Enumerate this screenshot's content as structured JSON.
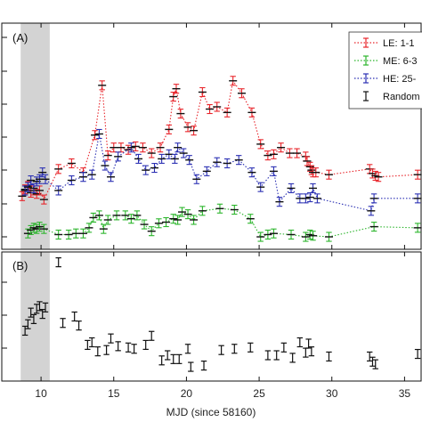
{
  "chart_data": [
    {
      "panel": "(A)",
      "type": "scatter",
      "xlabel": "",
      "ylabel": "",
      "xlim": [
        7.3,
        36.2
      ],
      "ylim": [
        0,
        1
      ],
      "shaded_x": [
        8.6,
        10.6
      ],
      "legend": {
        "placement": "top-right",
        "entries": [
          "LE: 1-1",
          "ME: 6-3",
          "HE: 25-",
          "Random"
        ]
      },
      "series": [
        {
          "name": "LE: 1-1",
          "color": "#e8242a",
          "x": [
            8.7,
            8.9,
            9.1,
            9.3,
            9.5,
            9.7,
            9.9,
            10.2,
            11.2,
            12.1,
            12.9,
            13.7,
            14.2,
            14.6,
            15.0,
            15.5,
            16.0,
            16.5,
            17.0,
            17.6,
            18.2,
            18.8,
            19.1,
            19.3,
            19.6,
            20.1,
            20.5,
            21.1,
            21.6,
            22.1,
            22.8,
            23.2,
            23.8,
            24.5,
            25.1,
            25.6,
            26.0,
            26.5,
            27.1,
            27.6,
            28.2,
            28.3,
            28.5,
            28.6,
            28.7,
            28.9,
            29.8,
            32.6,
            32.8,
            33.0,
            33.2,
            35.9
          ],
          "y": [
            0.765,
            0.735,
            0.72,
            0.75,
            0.74,
            0.755,
            0.74,
            0.78,
            0.645,
            0.62,
            0.66,
            0.495,
            0.275,
            0.585,
            0.55,
            0.55,
            0.56,
            0.545,
            0.55,
            0.575,
            0.55,
            0.47,
            0.325,
            0.29,
            0.4,
            0.46,
            0.475,
            0.305,
            0.38,
            0.37,
            0.395,
            0.255,
            0.31,
            0.395,
            0.535,
            0.585,
            0.58,
            0.55,
            0.575,
            0.575,
            0.59,
            0.61,
            0.635,
            0.65,
            0.66,
            0.66,
            0.67,
            0.645,
            0.665,
            0.675,
            0.68,
            0.67
          ]
        },
        {
          "name": "ME: 6-3",
          "color": "#2bb52b",
          "x": [
            9.1,
            9.3,
            9.5,
            9.7,
            9.9,
            10.2,
            11.2,
            11.9,
            12.4,
            12.9,
            13.3,
            13.6,
            14.0,
            14.3,
            14.6,
            15.2,
            15.8,
            16.2,
            16.6,
            17.1,
            17.6,
            18.1,
            18.6,
            19.1,
            19.4,
            19.7,
            20.1,
            20.5,
            21.1,
            22.3,
            23.3,
            24.4,
            25.1,
            25.6,
            26.0,
            27.2,
            28.2,
            28.5,
            28.7,
            29.8,
            32.9,
            35.9
          ],
          "y": [
            0.93,
            0.915,
            0.905,
            0.91,
            0.9,
            0.91,
            0.935,
            0.935,
            0.93,
            0.93,
            0.905,
            0.86,
            0.85,
            0.91,
            0.87,
            0.85,
            0.85,
            0.865,
            0.85,
            0.89,
            0.92,
            0.885,
            0.88,
            0.865,
            0.87,
            0.835,
            0.845,
            0.87,
            0.83,
            0.82,
            0.825,
            0.865,
            0.945,
            0.935,
            0.93,
            0.935,
            0.945,
            0.935,
            0.94,
            0.945,
            0.9,
            0.905
          ]
        },
        {
          "name": "HE: 25-",
          "color": "#2a2fb3",
          "x": [
            8.9,
            9.1,
            9.3,
            9.5,
            9.7,
            9.9,
            10.1,
            10.3,
            11.2,
            12.1,
            12.9,
            13.5,
            14.0,
            14.4,
            14.8,
            15.3,
            16.2,
            16.7,
            17.2,
            17.8,
            18.3,
            18.8,
            19.2,
            19.4,
            19.8,
            20.2,
            20.7,
            21.4,
            22.1,
            22.8,
            23.6,
            24.5,
            25.1,
            26.0,
            26.4,
            27.2,
            27.8,
            28.2,
            28.5,
            28.7,
            29.0,
            32.7,
            32.9,
            35.9
          ],
          "y": [
            0.74,
            0.725,
            0.695,
            0.73,
            0.7,
            0.69,
            0.66,
            0.69,
            0.74,
            0.695,
            0.68,
            0.67,
            0.49,
            0.63,
            0.68,
            0.59,
            0.55,
            0.6,
            0.65,
            0.64,
            0.6,
            0.58,
            0.6,
            0.55,
            0.575,
            0.605,
            0.69,
            0.655,
            0.615,
            0.62,
            0.605,
            0.66,
            0.725,
            0.655,
            0.79,
            0.73,
            0.775,
            0.775,
            0.77,
            0.73,
            0.775,
            0.83,
            0.775,
            0.775
          ]
        }
      ]
    },
    {
      "panel": "(B)",
      "type": "scatter",
      "xlabel": "MJD (since 58160)",
      "ylabel": "",
      "xlim": [
        7.3,
        36.2
      ],
      "ylim": [
        0,
        1
      ],
      "shaded_x": [
        8.6,
        10.6
      ],
      "xticks": [
        "10",
        "15",
        "20",
        "25",
        "30",
        "35"
      ],
      "xtick_values": [
        10,
        15,
        20,
        25,
        30,
        35
      ],
      "series": [
        {
          "name": "Random",
          "color": "#111111",
          "x": [
            8.9,
            9.1,
            9.3,
            9.5,
            9.7,
            9.9,
            10.1,
            10.3,
            11.2,
            11.5,
            12.3,
            12.6,
            13.2,
            13.5,
            13.9,
            14.5,
            14.8,
            15.3,
            16.0,
            16.4,
            17.2,
            17.6,
            18.3,
            18.7,
            19.1,
            19.5,
            20.1,
            20.3,
            21.2,
            22.4,
            23.3,
            24.4,
            25.6,
            26.2,
            26.7,
            27.3,
            27.8,
            28.2,
            28.4,
            28.6,
            29.8,
            32.6,
            32.8,
            33.0,
            35.9
          ],
          "y": [
            0.61,
            0.56,
            0.47,
            0.52,
            0.44,
            0.42,
            0.48,
            0.43,
            0.08,
            0.55,
            0.5,
            0.57,
            0.72,
            0.7,
            0.77,
            0.76,
            0.67,
            0.73,
            0.74,
            0.75,
            0.72,
            0.65,
            0.84,
            0.8,
            0.83,
            0.83,
            0.75,
            0.89,
            0.88,
            0.76,
            0.75,
            0.74,
            0.8,
            0.8,
            0.74,
            0.82,
            0.7,
            0.78,
            0.71,
            0.77,
            0.81,
            0.81,
            0.85,
            0.87,
            0.79
          ]
        }
      ]
    }
  ],
  "annotations": {
    "panel_a_label": "(A)",
    "panel_b_label": "(B)",
    "xlabel": "MJD (since 58160)"
  }
}
